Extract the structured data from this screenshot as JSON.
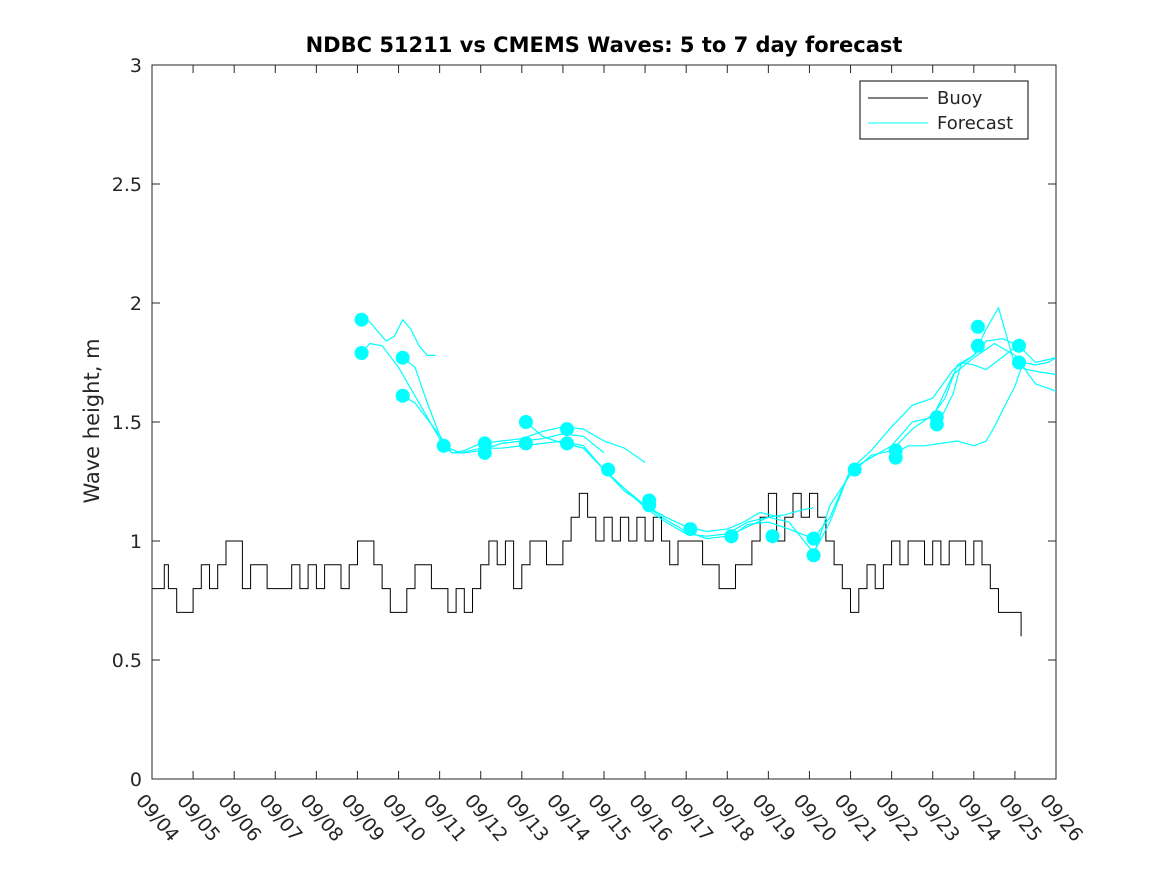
{
  "chart_data": {
    "type": "line",
    "title": "NDBC 51211 vs CMEMS Waves: 5 to 7 day forecast",
    "xlabel": "",
    "ylabel": "Wave height, m",
    "xlim": [
      0,
      22
    ],
    "ylim": [
      0,
      3
    ],
    "x_units": "days since 09/04 00:00",
    "xtick_labels": [
      "09/04",
      "09/05",
      "09/06",
      "09/07",
      "09/08",
      "09/09",
      "09/10",
      "09/11",
      "09/12",
      "09/13",
      "09/14",
      "09/15",
      "09/16",
      "09/17",
      "09/18",
      "09/19",
      "09/20",
      "09/21",
      "09/22",
      "09/23",
      "09/24",
      "09/25",
      "09/26"
    ],
    "ytick_labels": [
      "0",
      "0.5",
      "1",
      "1.5",
      "2",
      "2.5",
      "3"
    ],
    "legend": {
      "position": "top-right",
      "entries": [
        "Buoy",
        "Forecast"
      ]
    },
    "colors": {
      "buoy": "#000000",
      "forecast": "#00ffff",
      "axes": "#262626"
    },
    "series": [
      {
        "name": "Buoy",
        "x": [
          0.0,
          0.2,
          0.3,
          0.4,
          0.6,
          0.8,
          1.0,
          1.2,
          1.4,
          1.6,
          1.8,
          2.0,
          2.2,
          2.4,
          2.6,
          2.8,
          3.0,
          3.2,
          3.4,
          3.6,
          3.8,
          4.0,
          4.2,
          4.4,
          4.6,
          4.8,
          5.0,
          5.2,
          5.4,
          5.6,
          5.8,
          6.0,
          6.2,
          6.4,
          6.6,
          6.8,
          7.0,
          7.2,
          7.4,
          7.6,
          7.8,
          8.0,
          8.2,
          8.4,
          8.6,
          8.8,
          9.0,
          9.2,
          9.4,
          9.6,
          9.8,
          10.0,
          10.2,
          10.4,
          10.6,
          10.8,
          11.0,
          11.2,
          11.4,
          11.6,
          11.8,
          12.0,
          12.2,
          12.4,
          12.6,
          12.8,
          13.0,
          13.2,
          13.4,
          13.6,
          13.8,
          14.0,
          14.2,
          14.4,
          14.6,
          14.8,
          15.0,
          15.2,
          15.4,
          15.6,
          15.8,
          16.0,
          16.2,
          16.4,
          16.6,
          16.8,
          17.0,
          17.2,
          17.4,
          17.6,
          17.8,
          18.0,
          18.2,
          18.4,
          18.6,
          18.8,
          19.0,
          19.2,
          19.4,
          19.6,
          19.8,
          20.0,
          20.2,
          20.4,
          20.6,
          20.8,
          21.0,
          21.1,
          21.15
        ],
        "y": [
          0.8,
          0.8,
          0.9,
          0.8,
          0.7,
          0.7,
          0.8,
          0.9,
          0.8,
          0.9,
          1.0,
          1.0,
          0.8,
          0.9,
          0.9,
          0.8,
          0.8,
          0.8,
          0.9,
          0.8,
          0.9,
          0.8,
          0.9,
          0.9,
          0.8,
          0.9,
          1.0,
          1.0,
          0.9,
          0.8,
          0.7,
          0.7,
          0.8,
          0.9,
          0.9,
          0.8,
          0.8,
          0.7,
          0.8,
          0.7,
          0.8,
          0.9,
          1.0,
          0.9,
          1.0,
          0.8,
          0.9,
          1.0,
          1.0,
          0.9,
          0.9,
          1.0,
          1.1,
          1.2,
          1.1,
          1.0,
          1.1,
          1.0,
          1.1,
          1.0,
          1.1,
          1.0,
          1.1,
          1.0,
          0.9,
          1.0,
          1.0,
          1.0,
          0.9,
          0.9,
          0.8,
          0.8,
          0.9,
          0.9,
          1.0,
          1.1,
          1.2,
          1.0,
          1.1,
          1.2,
          1.1,
          1.2,
          1.1,
          1.0,
          0.9,
          0.8,
          0.7,
          0.8,
          0.9,
          0.8,
          0.9,
          1.0,
          0.9,
          1.0,
          1.0,
          0.9,
          1.0,
          0.9,
          1.0,
          1.0,
          0.9,
          1.0,
          0.9,
          0.8,
          0.7,
          0.7,
          0.7,
          0.7,
          0.6
        ]
      },
      {
        "name": "Forecast",
        "lines": [
          {
            "x": [
              5.1,
              5.3,
              5.5,
              5.7,
              5.9,
              6.1,
              6.3,
              6.5,
              6.7,
              6.9
            ],
            "y": [
              1.93,
              1.92,
              1.88,
              1.84,
              1.86,
              1.93,
              1.89,
              1.82,
              1.78,
              1.78
            ]
          },
          {
            "x": [
              5.1,
              5.3,
              5.6,
              6.0,
              6.4,
              6.8,
              7.1,
              7.3,
              7.6,
              8.0,
              8.5,
              9.0,
              9.5,
              10.0,
              10.5,
              11.0
            ],
            "y": [
              1.79,
              1.83,
              1.82,
              1.73,
              1.61,
              1.49,
              1.42,
              1.37,
              1.37,
              1.38,
              1.41,
              1.42,
              1.43,
              1.45,
              1.44,
              1.37
            ]
          },
          {
            "x": [
              6.1,
              6.4,
              6.7,
              7.1,
              7.3,
              7.6,
              8.0,
              8.5,
              9.0,
              9.5,
              10.0,
              10.5,
              11.0,
              11.5,
              12.0
            ],
            "y": [
              1.77,
              1.73,
              1.58,
              1.4,
              1.37,
              1.38,
              1.41,
              1.42,
              1.43,
              1.46,
              1.48,
              1.47,
              1.42,
              1.39,
              1.33
            ]
          },
          {
            "x": [
              6.1,
              6.4,
              6.8,
              7.1,
              7.5,
              8.0,
              8.5,
              9.0,
              9.5,
              10.0,
              10.5,
              11.0,
              11.5,
              12.0,
              12.5,
              13.0,
              13.5,
              14.0,
              14.4,
              14.8,
              15.3
            ],
            "y": [
              1.61,
              1.58,
              1.49,
              1.4,
              1.37,
              1.39,
              1.39,
              1.4,
              1.41,
              1.42,
              1.4,
              1.3,
              1.22,
              1.15,
              1.1,
              1.06,
              1.04,
              1.05,
              1.08,
              1.12,
              1.1
            ]
          },
          {
            "x": [
              9.1,
              9.5,
              10.0,
              10.5,
              11.0,
              11.5,
              12.0,
              12.5,
              13.0,
              13.5,
              14.0,
              14.5,
              15.0,
              15.4,
              15.8,
              16.1
            ],
            "y": [
              1.5,
              1.44,
              1.41,
              1.39,
              1.3,
              1.21,
              1.15,
              1.09,
              1.04,
              1.01,
              1.02,
              1.06,
              1.1,
              1.11,
              1.13,
              1.14
            ]
          },
          {
            "x": [
              10.1,
              10.5,
              11.0,
              11.5,
              12.0,
              12.5,
              13.0,
              13.5,
              14.0,
              14.5,
              15.0,
              15.5,
              16.1,
              16.5,
              17.0,
              17.5,
              18.0,
              18.5,
              19.0,
              19.5,
              20.0,
              20.3,
              20.7,
              21.1,
              21.5,
              22.0
            ],
            "y": [
              1.41,
              1.39,
              1.3,
              1.22,
              1.14,
              1.08,
              1.03,
              1.02,
              1.03,
              1.08,
              1.1,
              1.08,
              0.95,
              1.08,
              1.3,
              1.38,
              1.48,
              1.57,
              1.6,
              1.72,
              1.78,
              1.84,
              1.85,
              1.82,
              1.75,
              1.77
            ]
          },
          {
            "x": [
              14.1,
              14.5,
              15.0,
              15.5,
              16.1,
              16.5,
              17.0,
              17.5,
              18.0,
              18.5,
              19.0,
              19.5,
              20.0,
              20.5,
              21.0,
              21.5,
              22.0
            ],
            "y": [
              1.02,
              1.07,
              1.08,
              1.05,
              1.01,
              1.1,
              1.3,
              1.35,
              1.4,
              1.5,
              1.52,
              1.7,
              1.77,
              1.83,
              1.78,
              1.66,
              1.63
            ]
          },
          {
            "x": [
              16.1,
              16.5,
              17.0,
              17.5,
              18.0,
              18.5,
              19.0,
              19.3,
              19.6,
              20.0,
              20.3,
              20.6,
              20.8,
              21.0,
              21.3,
              21.6,
              22.0
            ],
            "y": [
              0.94,
              1.15,
              1.28,
              1.36,
              1.38,
              1.47,
              1.53,
              1.6,
              1.74,
              1.78,
              1.89,
              1.98,
              1.86,
              1.74,
              1.72,
              1.71,
              1.7
            ]
          },
          {
            "x": [
              19.1,
              19.3,
              19.5,
              19.7,
              20.0,
              20.3,
              20.6,
              20.9,
              21.1
            ],
            "y": [
              1.49,
              1.55,
              1.62,
              1.75,
              1.74,
              1.72,
              1.76,
              1.8,
              1.82
            ]
          },
          {
            "x": [
              18.1,
              18.4,
              18.8,
              19.2,
              19.6,
              20.0,
              20.3,
              20.5,
              20.7,
              21.0,
              21.2,
              21.5,
              21.8,
              22.0
            ],
            "y": [
              1.37,
              1.4,
              1.4,
              1.41,
              1.42,
              1.4,
              1.42,
              1.48,
              1.55,
              1.65,
              1.75,
              1.74,
              1.75,
              1.77
            ]
          }
        ],
        "start_markers": {
          "x": [
            5.1,
            5.1,
            6.1,
            6.1,
            7.1,
            8.1,
            8.1,
            9.1,
            9.1,
            10.1,
            10.1,
            11.1,
            12.1,
            12.1,
            13.1,
            14.1,
            14.1,
            15.1,
            16.1,
            16.1,
            17.1,
            18.1,
            18.1,
            19.1,
            19.1,
            20.1,
            20.1,
            21.1,
            21.1
          ],
          "y": [
            1.93,
            1.79,
            1.77,
            1.61,
            1.4,
            1.41,
            1.37,
            1.5,
            1.41,
            1.47,
            1.41,
            1.3,
            1.17,
            1.15,
            1.05,
            1.02,
            1.02,
            1.02,
            1.01,
            0.94,
            1.3,
            1.38,
            1.35,
            1.52,
            1.49,
            1.9,
            1.82,
            1.82,
            1.75
          ]
        }
      }
    ]
  }
}
